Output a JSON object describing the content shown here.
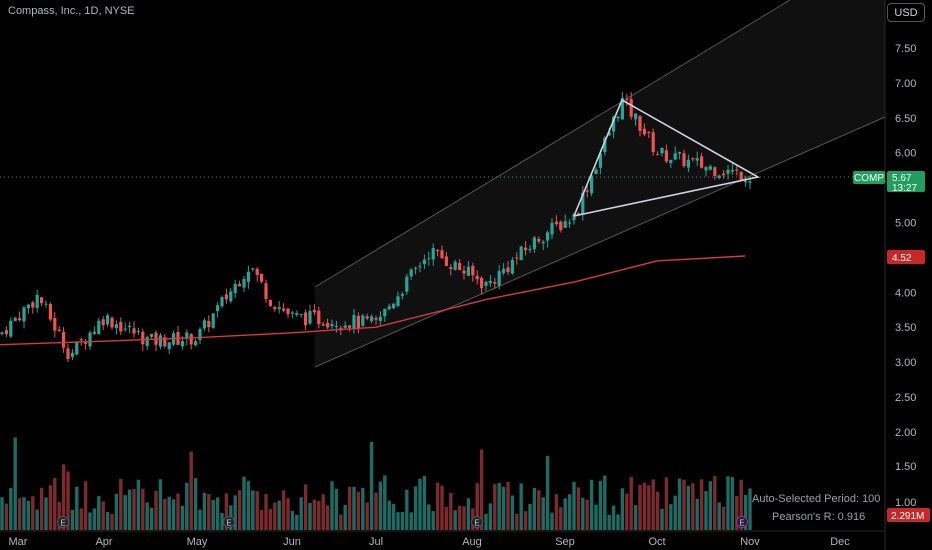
{
  "header": {
    "title": "Compass, Inc., 1D, NYSE",
    "currency": "USD"
  },
  "overlay": {
    "period_text": "Auto-Selected Period: 100",
    "pearson_text": "Pearson's R: 0.916"
  },
  "colors": {
    "up": "#26a69a",
    "down": "#ef5350",
    "ma": "#d63a3a",
    "volume_up": "#1d6b63",
    "volume_down": "#7d2a2e"
  },
  "chart_data": {
    "type": "candlestick",
    "symbol": "COMP",
    "last_price": "5.67",
    "countdown": "13:27",
    "ma_last": "4.52",
    "volume_last": "2.291M",
    "price_ticks": [
      "7.50",
      "7.00",
      "6.50",
      "6.00",
      "5.50",
      "5.00",
      "4.50",
      "4.00",
      "3.50",
      "3.00",
      "2.50"
    ],
    "volume_ticks": [
      "2.00",
      "1.50",
      "1.00"
    ],
    "x_ticks": [
      "Mar",
      "Apr",
      "May",
      "Jun",
      "Jul",
      "Aug",
      "Sep",
      "Oct",
      "Nov",
      "Dec"
    ],
    "ylim": [
      2.1,
      8.2
    ],
    "grid": false,
    "ohlc_close_points": [
      [
        "Mar",
        3.4
      ],
      [
        "Mar-mid",
        3.95
      ],
      [
        "Mar-end",
        3.1
      ],
      [
        "Apr",
        3.65
      ],
      [
        "Apr-mid",
        3.3
      ],
      [
        "May",
        3.35
      ],
      [
        "May-mid",
        4.4
      ],
      [
        "May-end",
        3.9
      ],
      [
        "Jun",
        3.65
      ],
      [
        "Jul",
        3.55
      ],
      [
        "Jul-mid",
        4.6
      ],
      [
        "Aug",
        4.1
      ],
      [
        "Aug-mid",
        4.8
      ],
      [
        "Sep",
        5.1
      ],
      [
        "Sep-mid",
        6.75
      ],
      [
        "Sep-end",
        6.4
      ],
      [
        "Oct",
        6.0
      ],
      [
        "Oct-mid",
        5.8
      ],
      [
        "Oct-end",
        5.67
      ]
    ],
    "ma_points": [
      [
        "Mar",
        3.25
      ],
      [
        "Apr",
        3.3
      ],
      [
        "May",
        3.35
      ],
      [
        "Jun",
        3.42
      ],
      [
        "Jul",
        3.5
      ],
      [
        "Aug",
        3.9
      ],
      [
        "Sep",
        4.15
      ],
      [
        "Oct",
        4.45
      ],
      [
        "Oct-end",
        4.52
      ]
    ],
    "earnings_markers": [
      "Mar-mid",
      "May",
      "Aug",
      "Oct-end"
    ]
  }
}
